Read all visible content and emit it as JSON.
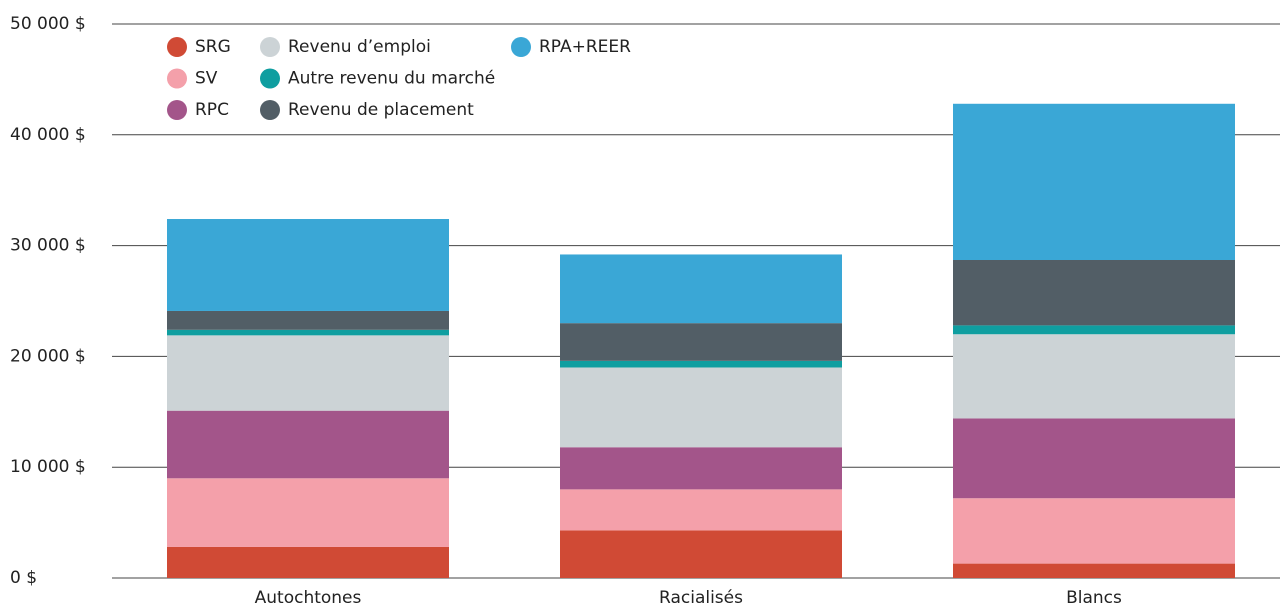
{
  "chart_data": {
    "type": "stacked_bar",
    "categories": [
      "Autochtones",
      "Racialisés",
      "Blancs"
    ],
    "series": [
      {
        "name": "SRG",
        "color": "#d04a35",
        "values": [
          2.8,
          4.3,
          1.3
        ]
      },
      {
        "name": "SV",
        "color": "#f4a0aa",
        "values": [
          6.2,
          3.7,
          5.9
        ]
      },
      {
        "name": "RPC",
        "color": "#a3558a",
        "values": [
          6.1,
          3.8,
          7.2
        ]
      },
      {
        "name": "Revenu d’emploi",
        "color": "#ccd3d6",
        "values": [
          6.8,
          7.2,
          7.6
        ]
      },
      {
        "name": "Autre revenu du marché",
        "color": "#0f9ea0",
        "values": [
          0.5,
          0.6,
          0.8
        ]
      },
      {
        "name": "Revenu de placement",
        "color": "#525e66",
        "values": [
          1.7,
          3.4,
          5.9
        ]
      },
      {
        "name": "RPA+REER",
        "color": "#3aa7d6",
        "values": [
          8.3,
          6.2,
          14.1
        ]
      }
    ],
    "ylim": [
      0,
      50
    ],
    "yticks": [
      {
        "value": 0,
        "label": "0 $"
      },
      {
        "value": 10,
        "label": "10 000 $"
      },
      {
        "value": 20,
        "label": "20 000 $"
      },
      {
        "value": 30,
        "label": "30 000 $"
      },
      {
        "value": 40,
        "label": "40 000 $"
      },
      {
        "value": 50,
        "label": "50 000 $"
      }
    ],
    "grid": true
  }
}
